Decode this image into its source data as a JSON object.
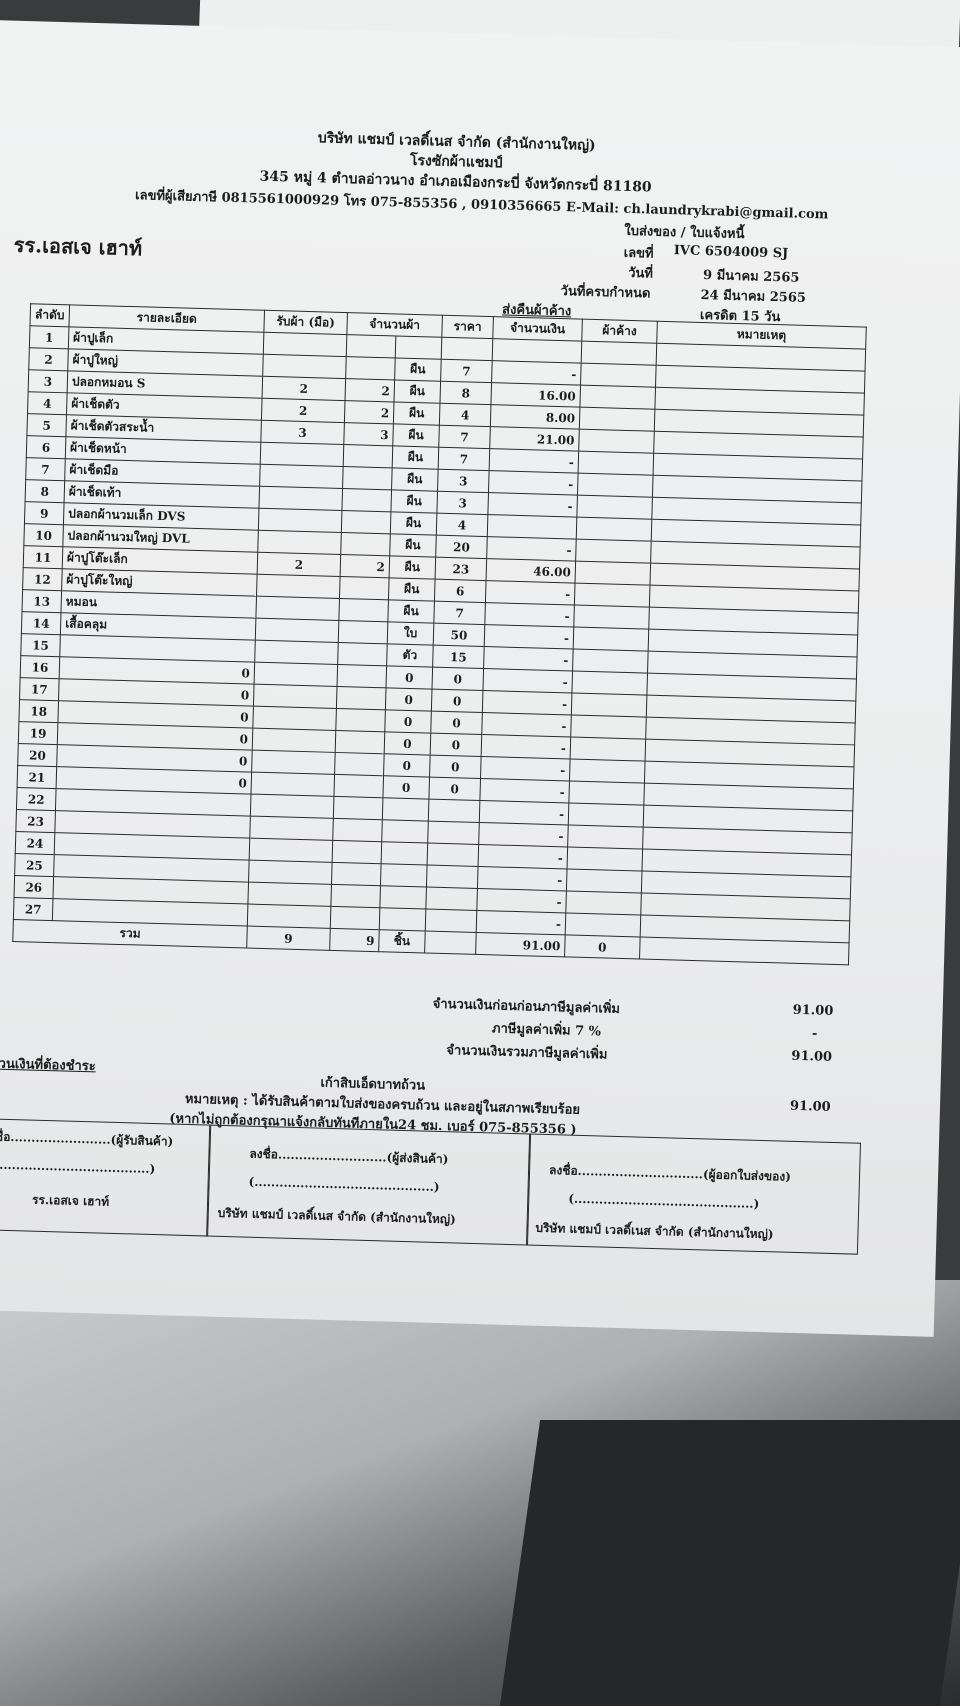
{
  "company": {
    "name": "บริษัท แชมป์ เวลดิ์เนส จำกัด (สำนักงานใหญ่)",
    "branch": "โรงซักผ้าแชมป์",
    "address": "345 หมู่ 4 ตำบลอ่าวนาง อำเภอเมืองกระบี่ จังหวัดกระบี่ 81180",
    "contact": "เลขที่ผู้เสียภาษี 0815561000929 โทร 075-855356 , 0910356665 E-Mail: ch.laundrykrabi@gmail.com"
  },
  "customer": "รร.เอสเจ เฮาท์",
  "doc": {
    "type": "ใบส่งของ / ใบแจ้งหนี้",
    "no_label": "เลขที่",
    "no": "IVC 6504009 SJ",
    "date_label": "วันที่",
    "date": "9 มีนาคม 2565",
    "due_label": "วันที่ครบกำหนด",
    "due": "24 มีนาคม 2565",
    "credit": "เครดิต 15 วัน",
    "return_label": "ส่งคืนผ้าค้าง"
  },
  "table": {
    "headers": {
      "no": "ลำดับ",
      "desc": "รายละเอียด",
      "received": "รับผ้า (มือ)",
      "qty": "จำนวนผ้า",
      "price": "ราคา",
      "amount": "จำนวนเงิน",
      "pending": "ผ้าค้าง",
      "remark": "หมายเหตุ"
    },
    "rows": [
      {
        "no": "1",
        "desc": "ผ้าปูเล็ก",
        "recv": "",
        "qty": "",
        "unit": "",
        "price": "",
        "amount": ""
      },
      {
        "no": "2",
        "desc": "ผ้าปูใหญ่",
        "recv": "",
        "qty": "",
        "unit": "ผืน",
        "price": "7",
        "amount": "-"
      },
      {
        "no": "3",
        "desc": "ปลอกหมอน S",
        "recv": "2",
        "qty": "2",
        "unit": "ผืน",
        "price": "8",
        "amount": "16.00"
      },
      {
        "no": "4",
        "desc": "ผ้าเช็ดตัว",
        "recv": "2",
        "qty": "2",
        "unit": "ผืน",
        "price": "4",
        "amount": "8.00"
      },
      {
        "no": "5",
        "desc": "ผ้าเช็ดตัวสระน้ำ",
        "recv": "3",
        "qty": "3",
        "unit": "ผืน",
        "price": "7",
        "amount": "21.00"
      },
      {
        "no": "6",
        "desc": "ผ้าเช็ดหน้า",
        "recv": "",
        "qty": "",
        "unit": "ผืน",
        "price": "7",
        "amount": "-"
      },
      {
        "no": "7",
        "desc": "ผ้าเช็ดมือ",
        "recv": "",
        "qty": "",
        "unit": "ผืน",
        "price": "3",
        "amount": "-"
      },
      {
        "no": "8",
        "desc": "ผ้าเช็ดเท้า",
        "recv": "",
        "qty": "",
        "unit": "ผืน",
        "price": "3",
        "amount": "-"
      },
      {
        "no": "9",
        "desc": "ปลอกผ้านวมเล็ก DVS",
        "recv": "",
        "qty": "",
        "unit": "ผืน",
        "price": "4",
        "amount": ""
      },
      {
        "no": "10",
        "desc": "ปลอกผ้านวมใหญ่ DVL",
        "recv": "",
        "qty": "",
        "unit": "ผืน",
        "price": "20",
        "amount": "-"
      },
      {
        "no": "11",
        "desc": "ผ้าปูโต๊ะเล็ก",
        "recv": "2",
        "qty": "2",
        "unit": "ผืน",
        "price": "23",
        "amount": "46.00"
      },
      {
        "no": "12",
        "desc": "ผ้าปูโต๊ะใหญ่",
        "recv": "",
        "qty": "",
        "unit": "ผืน",
        "price": "6",
        "amount": "-"
      },
      {
        "no": "13",
        "desc": "หมอน",
        "recv": "",
        "qty": "",
        "unit": "ผืน",
        "price": "7",
        "amount": "-"
      },
      {
        "no": "14",
        "desc": "เสื้อคลุม",
        "recv": "",
        "qty": "",
        "unit": "ใบ",
        "price": "50",
        "amount": "-"
      },
      {
        "no": "15",
        "desc": "",
        "recv": "",
        "qty": "",
        "unit": "ตัว",
        "price": "15",
        "amount": "-"
      },
      {
        "no": "16",
        "desc": "0",
        "recv": "",
        "qty": "",
        "unit": "0",
        "price": "0",
        "amount": "-"
      },
      {
        "no": "17",
        "desc": "0",
        "recv": "",
        "qty": "",
        "unit": "0",
        "price": "0",
        "amount": "-"
      },
      {
        "no": "18",
        "desc": "0",
        "recv": "",
        "qty": "",
        "unit": "0",
        "price": "0",
        "amount": "-"
      },
      {
        "no": "19",
        "desc": "0",
        "recv": "",
        "qty": "",
        "unit": "0",
        "price": "0",
        "amount": "-"
      },
      {
        "no": "20",
        "desc": "0",
        "recv": "",
        "qty": "",
        "unit": "0",
        "price": "0",
        "amount": "-"
      },
      {
        "no": "21",
        "desc": "0",
        "recv": "",
        "qty": "",
        "unit": "0",
        "price": "0",
        "amount": "-"
      },
      {
        "no": "22",
        "desc": "",
        "recv": "",
        "qty": "",
        "unit": "",
        "price": "",
        "amount": "-"
      },
      {
        "no": "23",
        "desc": "",
        "recv": "",
        "qty": "",
        "unit": "",
        "price": "",
        "amount": "-"
      },
      {
        "no": "24",
        "desc": "",
        "recv": "",
        "qty": "",
        "unit": "",
        "price": "",
        "amount": "-"
      },
      {
        "no": "25",
        "desc": "",
        "recv": "",
        "qty": "",
        "unit": "",
        "price": "",
        "amount": "-"
      },
      {
        "no": "26",
        "desc": "",
        "recv": "",
        "qty": "",
        "unit": "",
        "price": "",
        "amount": "-"
      },
      {
        "no": "27",
        "desc": "",
        "recv": "",
        "qty": "",
        "unit": "",
        "price": "",
        "amount": "-"
      }
    ],
    "total": {
      "label": "รวม",
      "recv": "9",
      "qty": "9",
      "unit": "ชิ้น",
      "amount": "91.00",
      "pending": "0"
    }
  },
  "summary": {
    "before_vat_label": "จำนวนเงินก่อนก่อนภาษีมูลค่าเพิ่ม",
    "before_vat": "91.00",
    "vat_label": "ภาษีมูลค่าเพิ่ม 7 %",
    "vat": "-",
    "incl_vat_label": "จำนวนเงินรวมภาษีมูลค่าเพิ่ม",
    "incl_vat": "91.00",
    "payable_label": "จำนวนเงินที่ต้องชำระ",
    "payable": "91.00",
    "amount_words": "เก้าสิบเอ็ดบาทถ้วน"
  },
  "note": {
    "line1": "หมายเหตุ : ได้รับสินค้าตามใบส่งของครบถ้วน และอยู่ในสภาพเรียบร้อย",
    "line2": "(หากไม่ถูกต้องกรุณาแจ้งกลับทันทีภายใน24 ชม.  เบอร์ 075-855356 )"
  },
  "signatures": [
    {
      "line": "ลงชื่อ........................(ผู้รับสินค้า)",
      "paren": "(.......................................)",
      "org": "รร.เอสเจ เฮาท์"
    },
    {
      "line": "ลงชื่อ..........................(ผู้ส่งสินค้า)",
      "paren": "(...........................................)",
      "org": "บริษัท แชมป์ เวลดิ์เนส จำกัด (สำนักงานใหญ่)"
    },
    {
      "line": "ลงชื่อ..............................(ผู้ออกใบส่งของ)",
      "paren": "(...........................................)",
      "org": "บริษัท แชมป์ เวลดิ์เนส จำกัด (สำนักงานใหญ่)"
    }
  ]
}
